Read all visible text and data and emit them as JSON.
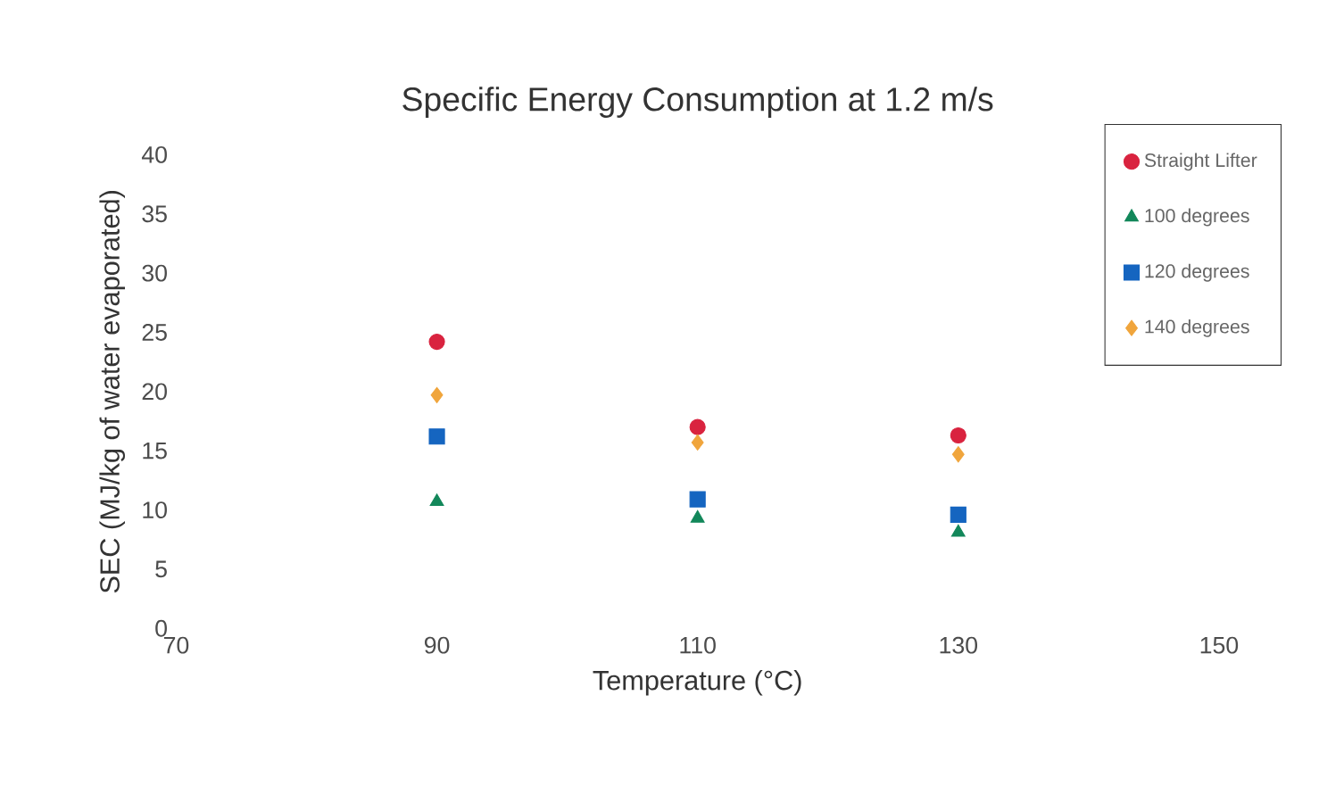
{
  "chart_data": {
    "type": "scatter",
    "title": "Specific Energy Consumption at 1.2 m/s",
    "xlabel": "Temperature (°C)",
    "ylabel": "SEC (MJ/kg of water evaporated)",
    "x": [
      90,
      110,
      130
    ],
    "xlim": [
      70,
      150
    ],
    "xticks": [
      70,
      90,
      110,
      130,
      150
    ],
    "ylim": [
      0,
      40
    ],
    "yticks": [
      0,
      5,
      10,
      15,
      20,
      25,
      30,
      35,
      40
    ],
    "legend": "top right",
    "series": [
      {
        "name": "Straight Lifter",
        "color": "#d9233f",
        "marker": "circle",
        "values": [
          24.2,
          17.0,
          16.3
        ]
      },
      {
        "name": "100 degrees",
        "color": "#12875a",
        "marker": "triangle",
        "values": [
          10.7,
          9.3,
          8.1
        ]
      },
      {
        "name": "120 degrees",
        "color": "#1565c0",
        "marker": "square",
        "values": [
          16.2,
          10.9,
          9.6
        ]
      },
      {
        "name": "140 degrees",
        "color": "#f0a53c",
        "marker": "diamond",
        "values": [
          19.7,
          15.7,
          14.7
        ]
      }
    ]
  }
}
